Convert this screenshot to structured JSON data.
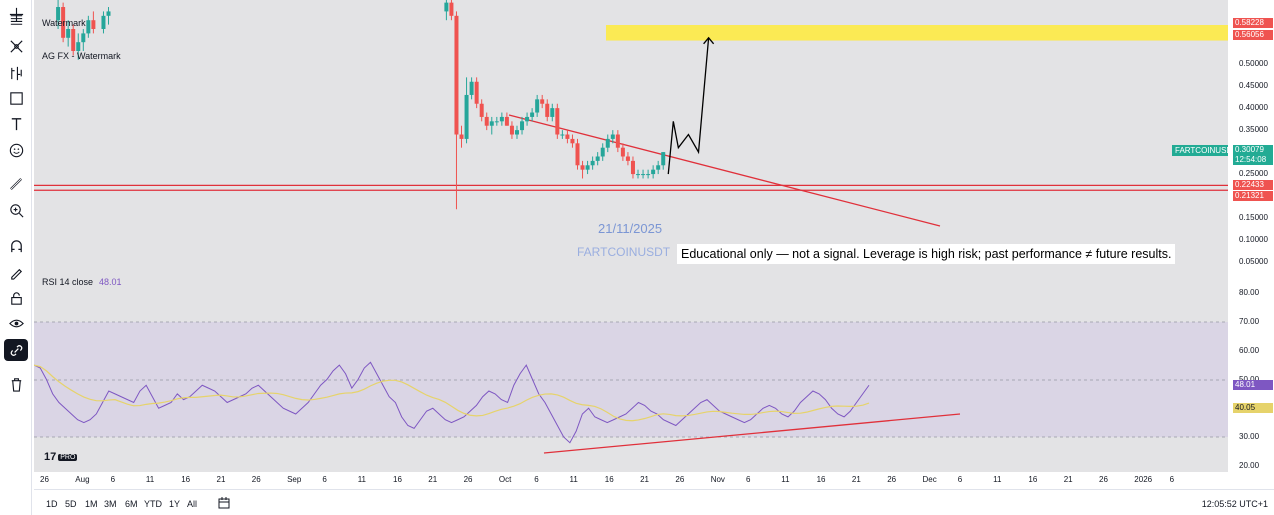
{
  "toolbar": {
    "items": [
      {
        "name": "crosshair-icon"
      },
      {
        "name": "trend-line-icon"
      },
      {
        "name": "fib-tool-icon"
      },
      {
        "name": "pattern-tool-icon"
      },
      {
        "name": "forecast-tool-icon"
      },
      {
        "name": "geometric-shape-icon"
      },
      {
        "name": "text-tool-icon"
      },
      {
        "name": "emoji-icon"
      },
      {
        "name": "measure-ruler-icon"
      },
      {
        "name": "zoom-in-icon"
      },
      {
        "name": "magnet-icon"
      },
      {
        "name": "drawing-mode-icon"
      },
      {
        "name": "lock-icon"
      },
      {
        "name": "eye-icon"
      },
      {
        "name": "link-icon"
      },
      {
        "name": "trash-icon"
      }
    ]
  },
  "legend": {
    "line1": "Watermark",
    "line2": "AG FX - Watermark"
  },
  "overlay": {
    "date_label": "21/11/2025",
    "symbol_watermark": "FARTCOINUSDT",
    "disclaimer": "Educational only — not a signal. Leverage is high risk; past performance ≠ future results."
  },
  "rsi": {
    "label": "RSI 14 close",
    "value": "48.01",
    "ma_value": "40.05",
    "axis_labels": [
      "80.00",
      "70.00",
      "60.00",
      "50.00",
      "40.00",
      "30.00",
      "20.00"
    ]
  },
  "price_axis": {
    "ticks": [
      "0.50000",
      "0.45000",
      "0.40000",
      "0.35000",
      "0.30000",
      "0.25000",
      "0.20000",
      "0.15000",
      "0.10000",
      "0.05000"
    ],
    "labels": {
      "top1": "0.58228",
      "top2": "0.56056",
      "symbol_price": "0.30079",
      "countdown": "12:54:08",
      "support1": "0.22433",
      "support2": "0.21321"
    },
    "symbol_tag": "FARTCOINUSDT"
  },
  "time_axis": {
    "ticks": [
      "26",
      "Aug",
      "6",
      "11",
      "16",
      "21",
      "26",
      "Sep",
      "6",
      "11",
      "16",
      "21",
      "26",
      "Oct",
      "6",
      "11",
      "16",
      "21",
      "26",
      "Nov",
      "6",
      "11",
      "16",
      "21",
      "26",
      "Dec",
      "6",
      "11",
      "16",
      "21",
      "26",
      "2026",
      "6"
    ]
  },
  "bottom_bar": {
    "ranges": [
      "1D",
      "5D",
      "1M",
      "3M",
      "6M",
      "YTD",
      "1Y",
      "All"
    ],
    "clock": "12:05:52 UTC+1"
  },
  "branding": {
    "logo_text": "PRO"
  },
  "colors": {
    "up": "#26a69a",
    "down": "#ef5350",
    "resistance_zone": "#ffeb3b",
    "support_line": "#e0303a",
    "rsi_line": "#7e57c2",
    "rsi_ma": "#e6d36b",
    "rsi_band": "#d6cfe6"
  },
  "chart_data": {
    "type": "candlestick",
    "symbol": "FARTCOINUSDT",
    "timeframe": "1D",
    "visible_candles_note": "",
    "candles": [
      {
        "date": "2025-07-23",
        "o": 0.6,
        "h": 0.66,
        "l": 0.58,
        "c": 0.63
      },
      {
        "date": "2025-07-24",
        "o": 0.63,
        "h": 0.64,
        "l": 0.55,
        "c": 0.56
      },
      {
        "date": "2025-07-25",
        "o": 0.56,
        "h": 0.6,
        "l": 0.54,
        "c": 0.58
      },
      {
        "date": "2025-07-26",
        "o": 0.58,
        "h": 0.59,
        "l": 0.52,
        "c": 0.53
      },
      {
        "date": "2025-07-27",
        "o": 0.53,
        "h": 0.57,
        "l": 0.51,
        "c": 0.55
      },
      {
        "date": "2025-07-28",
        "o": 0.55,
        "h": 0.58,
        "l": 0.53,
        "c": 0.57
      },
      {
        "date": "2025-07-29",
        "o": 0.57,
        "h": 0.61,
        "l": 0.56,
        "c": 0.6
      },
      {
        "date": "2025-07-30",
        "o": 0.6,
        "h": 0.62,
        "l": 0.57,
        "c": 0.58
      },
      {
        "date": "2025-08-01",
        "o": 0.58,
        "h": 0.62,
        "l": 0.57,
        "c": 0.61
      },
      {
        "date": "2025-08-02",
        "o": 0.61,
        "h": 0.63,
        "l": 0.59,
        "c": 0.62
      },
      {
        "date": "2025-10-08",
        "o": 0.62,
        "h": 0.65,
        "l": 0.6,
        "c": 0.64
      },
      {
        "date": "2025-10-09",
        "o": 0.64,
        "h": 0.66,
        "l": 0.6,
        "c": 0.61
      },
      {
        "date": "2025-10-10",
        "o": 0.61,
        "h": 0.62,
        "l": 0.17,
        "c": 0.34
      },
      {
        "date": "2025-10-11",
        "o": 0.34,
        "h": 0.36,
        "l": 0.31,
        "c": 0.33
      },
      {
        "date": "2025-10-12",
        "o": 0.33,
        "h": 0.47,
        "l": 0.32,
        "c": 0.43
      },
      {
        "date": "2025-10-13",
        "o": 0.43,
        "h": 0.47,
        "l": 0.42,
        "c": 0.46
      },
      {
        "date": "2025-10-14",
        "o": 0.46,
        "h": 0.47,
        "l": 0.4,
        "c": 0.41
      },
      {
        "date": "2025-10-15",
        "o": 0.41,
        "h": 0.42,
        "l": 0.37,
        "c": 0.38
      },
      {
        "date": "2025-10-16",
        "o": 0.38,
        "h": 0.39,
        "l": 0.35,
        "c": 0.36
      },
      {
        "date": "2025-10-17",
        "o": 0.36,
        "h": 0.38,
        "l": 0.34,
        "c": 0.37
      },
      {
        "date": "2025-10-18",
        "o": 0.37,
        "h": 0.38,
        "l": 0.36,
        "c": 0.37
      },
      {
        "date": "2025-10-19",
        "o": 0.37,
        "h": 0.39,
        "l": 0.36,
        "c": 0.38
      },
      {
        "date": "2025-10-20",
        "o": 0.38,
        "h": 0.39,
        "l": 0.36,
        "c": 0.36
      },
      {
        "date": "2025-10-21",
        "o": 0.36,
        "h": 0.37,
        "l": 0.33,
        "c": 0.34
      },
      {
        "date": "2025-10-22",
        "o": 0.34,
        "h": 0.36,
        "l": 0.33,
        "c": 0.35
      },
      {
        "date": "2025-10-23",
        "o": 0.35,
        "h": 0.38,
        "l": 0.34,
        "c": 0.37
      },
      {
        "date": "2025-10-24",
        "o": 0.37,
        "h": 0.39,
        "l": 0.36,
        "c": 0.38
      },
      {
        "date": "2025-10-25",
        "o": 0.38,
        "h": 0.4,
        "l": 0.37,
        "c": 0.39
      },
      {
        "date": "2025-10-26",
        "o": 0.39,
        "h": 0.43,
        "l": 0.38,
        "c": 0.42
      },
      {
        "date": "2025-10-27",
        "o": 0.42,
        "h": 0.43,
        "l": 0.4,
        "c": 0.41
      },
      {
        "date": "2025-10-28",
        "o": 0.41,
        "h": 0.42,
        "l": 0.37,
        "c": 0.38
      },
      {
        "date": "2025-10-29",
        "o": 0.38,
        "h": 0.41,
        "l": 0.37,
        "c": 0.4
      },
      {
        "date": "2025-10-30",
        "o": 0.4,
        "h": 0.41,
        "l": 0.33,
        "c": 0.34
      },
      {
        "date": "2025-10-31",
        "o": 0.34,
        "h": 0.35,
        "l": 0.33,
        "c": 0.34
      },
      {
        "date": "2025-11-01",
        "o": 0.34,
        "h": 0.35,
        "l": 0.32,
        "c": 0.33
      },
      {
        "date": "2025-11-02",
        "o": 0.33,
        "h": 0.34,
        "l": 0.31,
        "c": 0.32
      },
      {
        "date": "2025-11-03",
        "o": 0.32,
        "h": 0.33,
        "l": 0.26,
        "c": 0.27
      },
      {
        "date": "2025-11-04",
        "o": 0.27,
        "h": 0.28,
        "l": 0.24,
        "c": 0.26
      },
      {
        "date": "2025-11-05",
        "o": 0.26,
        "h": 0.28,
        "l": 0.25,
        "c": 0.27
      },
      {
        "date": "2025-11-06",
        "o": 0.27,
        "h": 0.29,
        "l": 0.26,
        "c": 0.28
      },
      {
        "date": "2025-11-07",
        "o": 0.28,
        "h": 0.3,
        "l": 0.27,
        "c": 0.29
      },
      {
        "date": "2025-11-08",
        "o": 0.29,
        "h": 0.32,
        "l": 0.28,
        "c": 0.31
      },
      {
        "date": "2025-11-09",
        "o": 0.31,
        "h": 0.34,
        "l": 0.3,
        "c": 0.33
      },
      {
        "date": "2025-11-10",
        "o": 0.33,
        "h": 0.35,
        "l": 0.32,
        "c": 0.34
      },
      {
        "date": "2025-11-11",
        "o": 0.34,
        "h": 0.35,
        "l": 0.3,
        "c": 0.31
      },
      {
        "date": "2025-11-12",
        "o": 0.31,
        "h": 0.32,
        "l": 0.28,
        "c": 0.29
      },
      {
        "date": "2025-11-13",
        "o": 0.29,
        "h": 0.3,
        "l": 0.27,
        "c": 0.28
      },
      {
        "date": "2025-11-14",
        "o": 0.28,
        "h": 0.29,
        "l": 0.24,
        "c": 0.25
      },
      {
        "date": "2025-11-15",
        "o": 0.25,
        "h": 0.26,
        "l": 0.24,
        "c": 0.25
      },
      {
        "date": "2025-11-16",
        "o": 0.25,
        "h": 0.26,
        "l": 0.24,
        "c": 0.25
      },
      {
        "date": "2025-11-17",
        "o": 0.25,
        "h": 0.26,
        "l": 0.24,
        "c": 0.25
      },
      {
        "date": "2025-11-18",
        "o": 0.25,
        "h": 0.27,
        "l": 0.24,
        "c": 0.26
      },
      {
        "date": "2025-11-19",
        "o": 0.26,
        "h": 0.28,
        "l": 0.25,
        "c": 0.27
      },
      {
        "date": "2025-11-20",
        "o": 0.27,
        "h": 0.3,
        "l": 0.26,
        "c": 0.3
      }
    ],
    "horizontal_levels": [
      0.22433,
      0.21321
    ],
    "resistance_zone": [
      0.56056,
      0.58228
    ],
    "projected_path": [
      {
        "date": "2025-11-21",
        "price": 0.25
      },
      {
        "date": "2025-11-22",
        "price": 0.37
      },
      {
        "date": "2025-11-23",
        "price": 0.31
      },
      {
        "date": "2025-11-25",
        "price": 0.34
      },
      {
        "date": "2025-11-27",
        "price": 0.3
      },
      {
        "date": "2025-11-29",
        "price": 0.56
      }
    ],
    "rsi_series": {
      "name": "RSI 14 close",
      "values": [
        55,
        54,
        50,
        45,
        42,
        40,
        38,
        36,
        35,
        36,
        38,
        42,
        46,
        45,
        44,
        43,
        42,
        46,
        48,
        44,
        40,
        41,
        42,
        45,
        43,
        44,
        46,
        48,
        47,
        46,
        44,
        42,
        43,
        44,
        45,
        47,
        48,
        46,
        44,
        42,
        40,
        39,
        38,
        40,
        42,
        45,
        48,
        50,
        53,
        55,
        52,
        47,
        50,
        54,
        56,
        52,
        48,
        44,
        42,
        37,
        34,
        33,
        36,
        39,
        40,
        38,
        36,
        35,
        36,
        37,
        39,
        41,
        44,
        46,
        45,
        43,
        42,
        48,
        52,
        55,
        50,
        45,
        42,
        38,
        34,
        30,
        28,
        32,
        38,
        40,
        37,
        36,
        35,
        36,
        37,
        38,
        40,
        42,
        41,
        39,
        38,
        36,
        35,
        34,
        36,
        38,
        40,
        42,
        43,
        41,
        39,
        38,
        37,
        36,
        35,
        36,
        38,
        40,
        41,
        40,
        38,
        37,
        39,
        42,
        44,
        46,
        45,
        43,
        40,
        38,
        37,
        39,
        42,
        45,
        48
      ]
    }
  }
}
